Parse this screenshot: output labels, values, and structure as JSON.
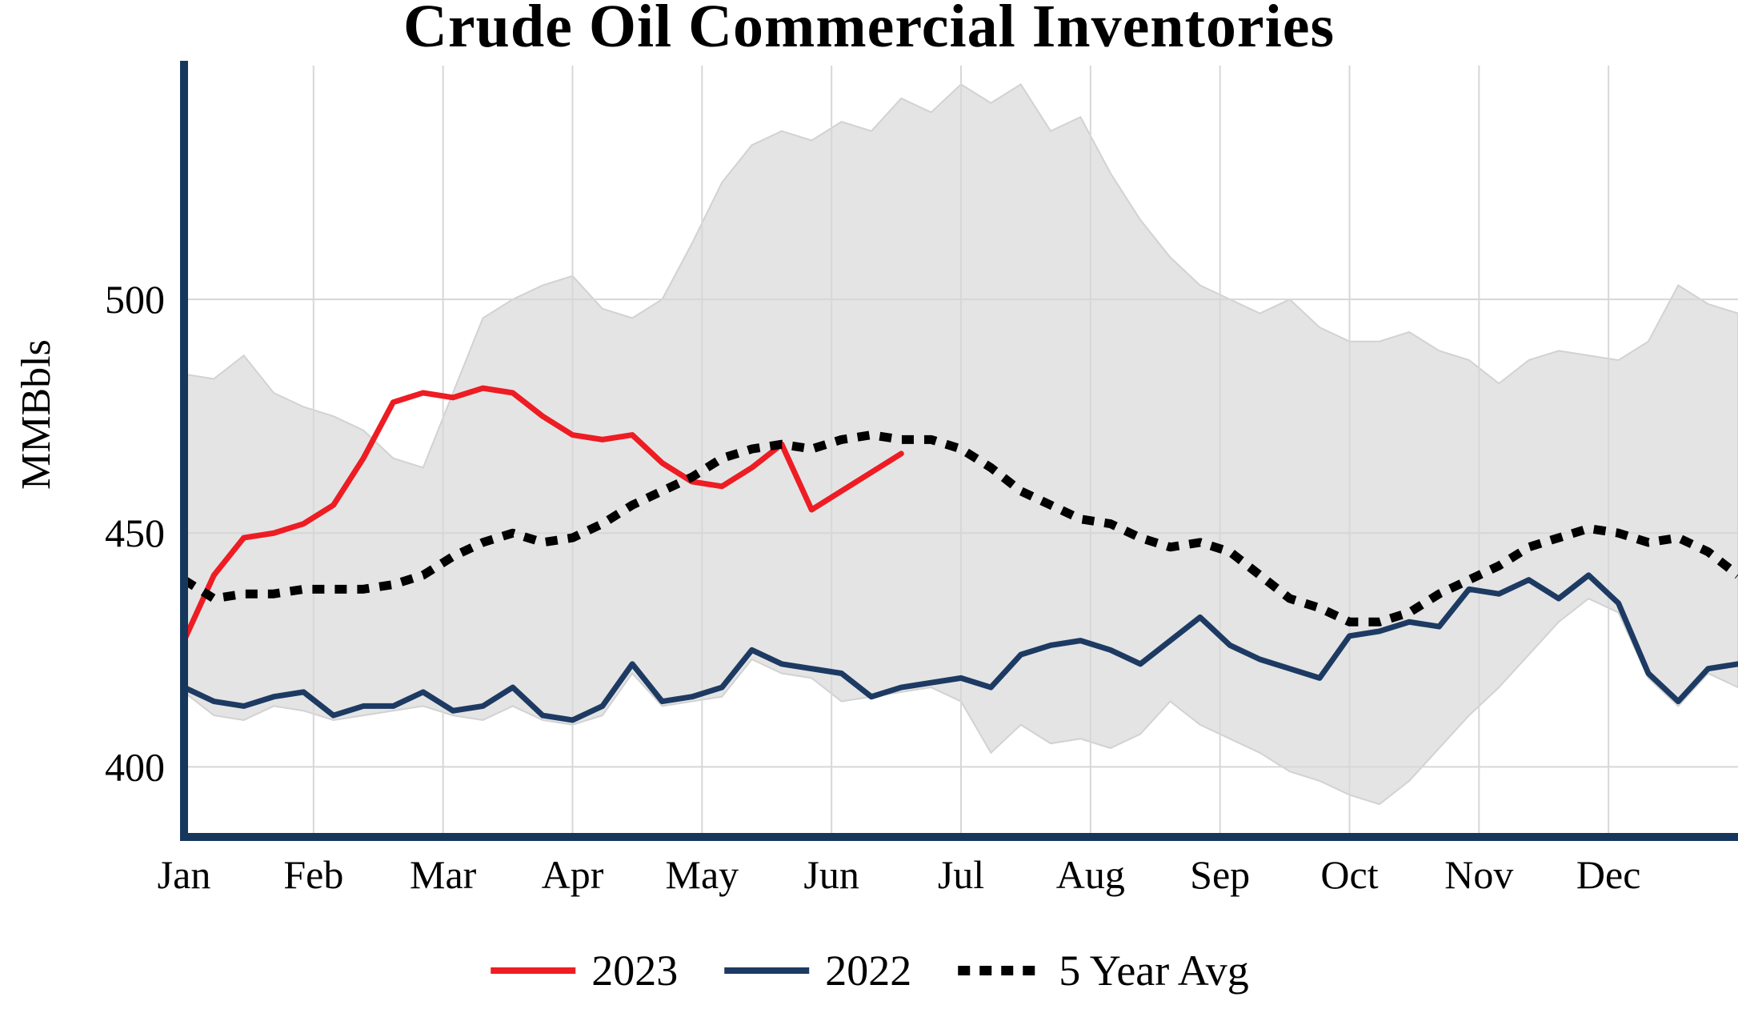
{
  "chart_data": {
    "type": "line",
    "title": "Crude Oil Commercial Inventories",
    "ylabel": "MMBbls",
    "xlabel": "",
    "x_tick_labels": [
      "Jan",
      "Feb",
      "Mar",
      "Apr",
      "May",
      "Jun",
      "Jul",
      "Aug",
      "Sep",
      "Oct",
      "Nov",
      "Dec"
    ],
    "y_ticks": [
      400,
      450,
      500
    ],
    "ylim": [
      385,
      550
    ],
    "x_span_months": 12,
    "weeks_per_year": 52,
    "grid": true,
    "grid_color": "#d7d7d7",
    "axis_color": "#16365c",
    "legend_position": "bottom-center",
    "band": {
      "name": "5 Year Range",
      "fill": "#e4e4e4",
      "stroke": "#d2d2d2",
      "upper": [
        484,
        483,
        488,
        480,
        477,
        475,
        472,
        466,
        464,
        480,
        496,
        500,
        503,
        505,
        498,
        496,
        500,
        512,
        525,
        533,
        536,
        534,
        538,
        536,
        543,
        540,
        546,
        542,
        546,
        536,
        539,
        527,
        517,
        509,
        503,
        500,
        497,
        500,
        494,
        491,
        491,
        493,
        489,
        487,
        482,
        487,
        489,
        488,
        487,
        491,
        503,
        499,
        497
      ],
      "lower": [
        416,
        411,
        410,
        413,
        412,
        410,
        411,
        412,
        413,
        411,
        410,
        413,
        410,
        409,
        411,
        420,
        413,
        414,
        415,
        423,
        420,
        419,
        414,
        415,
        416,
        417,
        414,
        403,
        409,
        405,
        406,
        404,
        407,
        414,
        409,
        406,
        403,
        399,
        397,
        394,
        392,
        397,
        404,
        411,
        417,
        424,
        431,
        436,
        433,
        419,
        413,
        420,
        417
      ]
    },
    "series": [
      {
        "name": "2023",
        "color": "#ee1c23",
        "style": "solid",
        "values": [
          427,
          441,
          449,
          450,
          452,
          456,
          466,
          478,
          480,
          479,
          481,
          480,
          475,
          471,
          470,
          471,
          465,
          461,
          460,
          464,
          469,
          455,
          459,
          463,
          467
        ]
      },
      {
        "name": "2022",
        "color": "#1d3a63",
        "style": "solid",
        "values": [
          417,
          414,
          413,
          415,
          416,
          411,
          413,
          413,
          416,
          412,
          413,
          417,
          411,
          410,
          413,
          422,
          414,
          415,
          417,
          425,
          422,
          421,
          420,
          415,
          417,
          418,
          419,
          417,
          424,
          426,
          427,
          425,
          422,
          427,
          432,
          426,
          423,
          421,
          419,
          428,
          429,
          431,
          430,
          438,
          437,
          440,
          436,
          441,
          435,
          420,
          414,
          421,
          422
        ]
      },
      {
        "name": "5 Year Avg",
        "color": "#000000",
        "style": "dotted",
        "values": [
          440,
          436,
          437,
          437,
          438,
          438,
          438,
          439,
          441,
          445,
          448,
          450,
          448,
          449,
          452,
          456,
          459,
          462,
          466,
          468,
          469,
          468,
          470,
          471,
          470,
          470,
          468,
          464,
          459,
          456,
          453,
          452,
          449,
          447,
          448,
          446,
          441,
          436,
          434,
          431,
          431,
          433,
          437,
          440,
          443,
          447,
          449,
          451,
          450,
          448,
          449,
          446,
          441
        ]
      }
    ]
  }
}
